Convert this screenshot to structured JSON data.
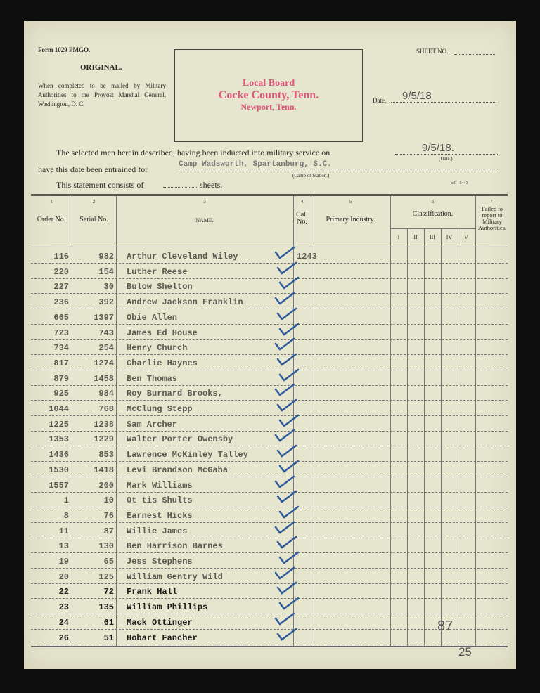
{
  "form": {
    "form_no": "Form 1029 PMGO.",
    "original": "ORIGINAL.",
    "instructions": "When completed to be mailed by Military Authorities to the Provost Marshal General, Washington, D. C.",
    "sheet_label": "SHEET NO.",
    "date_label": "Date,",
    "date_value": "9/5/18",
    "print_code": "e3—5443"
  },
  "stamp": {
    "line1": "Local Board",
    "line2": "Cocke County, Tenn.",
    "line3": "Newport, Tenn."
  },
  "statement": {
    "inducted_text": "The selected men herein described, having been inducted into military service on",
    "inducted_date": "9/5/18.",
    "date_caption": "(Date.)",
    "entrained_text": "have this date been entrained for",
    "camp": "Camp Wadsworth, Spartanburg, S.C.",
    "camp_caption": "(Camp or Station.)",
    "consists_text": "This statement consists of",
    "sheets_text": "sheets."
  },
  "columns": {
    "nums": [
      "1",
      "2",
      "3",
      "4",
      "5",
      "6",
      "7"
    ],
    "order": "Order No.",
    "serial": "Serial No.",
    "name": "NAME.",
    "call": "Call No.",
    "industry": "Primary Industry.",
    "classification": "Classification.",
    "classes": [
      "I",
      "II",
      "III",
      "IV",
      "V"
    ],
    "failed": "Failed to report to Military Authorities."
  },
  "rows": [
    {
      "order": "116",
      "serial": "982",
      "name": "Arthur Cleveland Wiley",
      "call": "1243"
    },
    {
      "order": "220",
      "serial": "154",
      "name": "Luther Reese"
    },
    {
      "order": "227",
      "serial": "30",
      "name": "Bulow Shelton"
    },
    {
      "order": "236",
      "serial": "392",
      "name": "Andrew Jackson Franklin"
    },
    {
      "order": "665",
      "serial": "1397",
      "name": "Obie Allen"
    },
    {
      "order": "723",
      "serial": "743",
      "name": "James Ed House"
    },
    {
      "order": "734",
      "serial": "254",
      "name": "Henry Church"
    },
    {
      "order": "817",
      "serial": "1274",
      "name": "Charlie Haynes"
    },
    {
      "order": "879",
      "serial": "1458",
      "name": "Ben Thomas"
    },
    {
      "order": "925",
      "serial": "984",
      "name": "Roy Burnard Brooks,"
    },
    {
      "order": "1044",
      "serial": "768",
      "name": "McClung Stepp"
    },
    {
      "order": "1225",
      "serial": "1238",
      "name": "Sam Archer"
    },
    {
      "order": "1353",
      "serial": "1229",
      "name": "Walter Porter Owensby"
    },
    {
      "order": "1436",
      "serial": "853",
      "name": "Lawrence McKinley Talley"
    },
    {
      "order": "1530",
      "serial": "1418",
      "name": "Levi Brandson McGaha"
    },
    {
      "order": "1557",
      "serial": "200",
      "name": "Mark Williams"
    },
    {
      "order": "1",
      "serial": "10",
      "name": "Ot tis Shults"
    },
    {
      "order": "8",
      "serial": "76",
      "name": "Earnest Hicks"
    },
    {
      "order": "11",
      "serial": "87",
      "name": "Willie James"
    },
    {
      "order": "13",
      "serial": "130",
      "name": "Ben Harrison Barnes"
    },
    {
      "order": "19",
      "serial": "65",
      "name": "Jess Stephens"
    },
    {
      "order": "20",
      "serial": "125",
      "name": "William Gentry Wild"
    },
    {
      "order": "22",
      "serial": "72",
      "name": "Frank Hall"
    },
    {
      "order": "23",
      "serial": "135",
      "name": "William Phillips"
    },
    {
      "order": "24",
      "serial": "61",
      "name": "Mack Ottinger"
    },
    {
      "order": "26",
      "serial": "51",
      "name": "Hobart Fancher"
    }
  ],
  "annotations": {
    "total": "87",
    "page": "25"
  },
  "colors": {
    "stamp": "#e0557a",
    "check": "#2f5a9a",
    "paper": "#e6e6cf"
  }
}
